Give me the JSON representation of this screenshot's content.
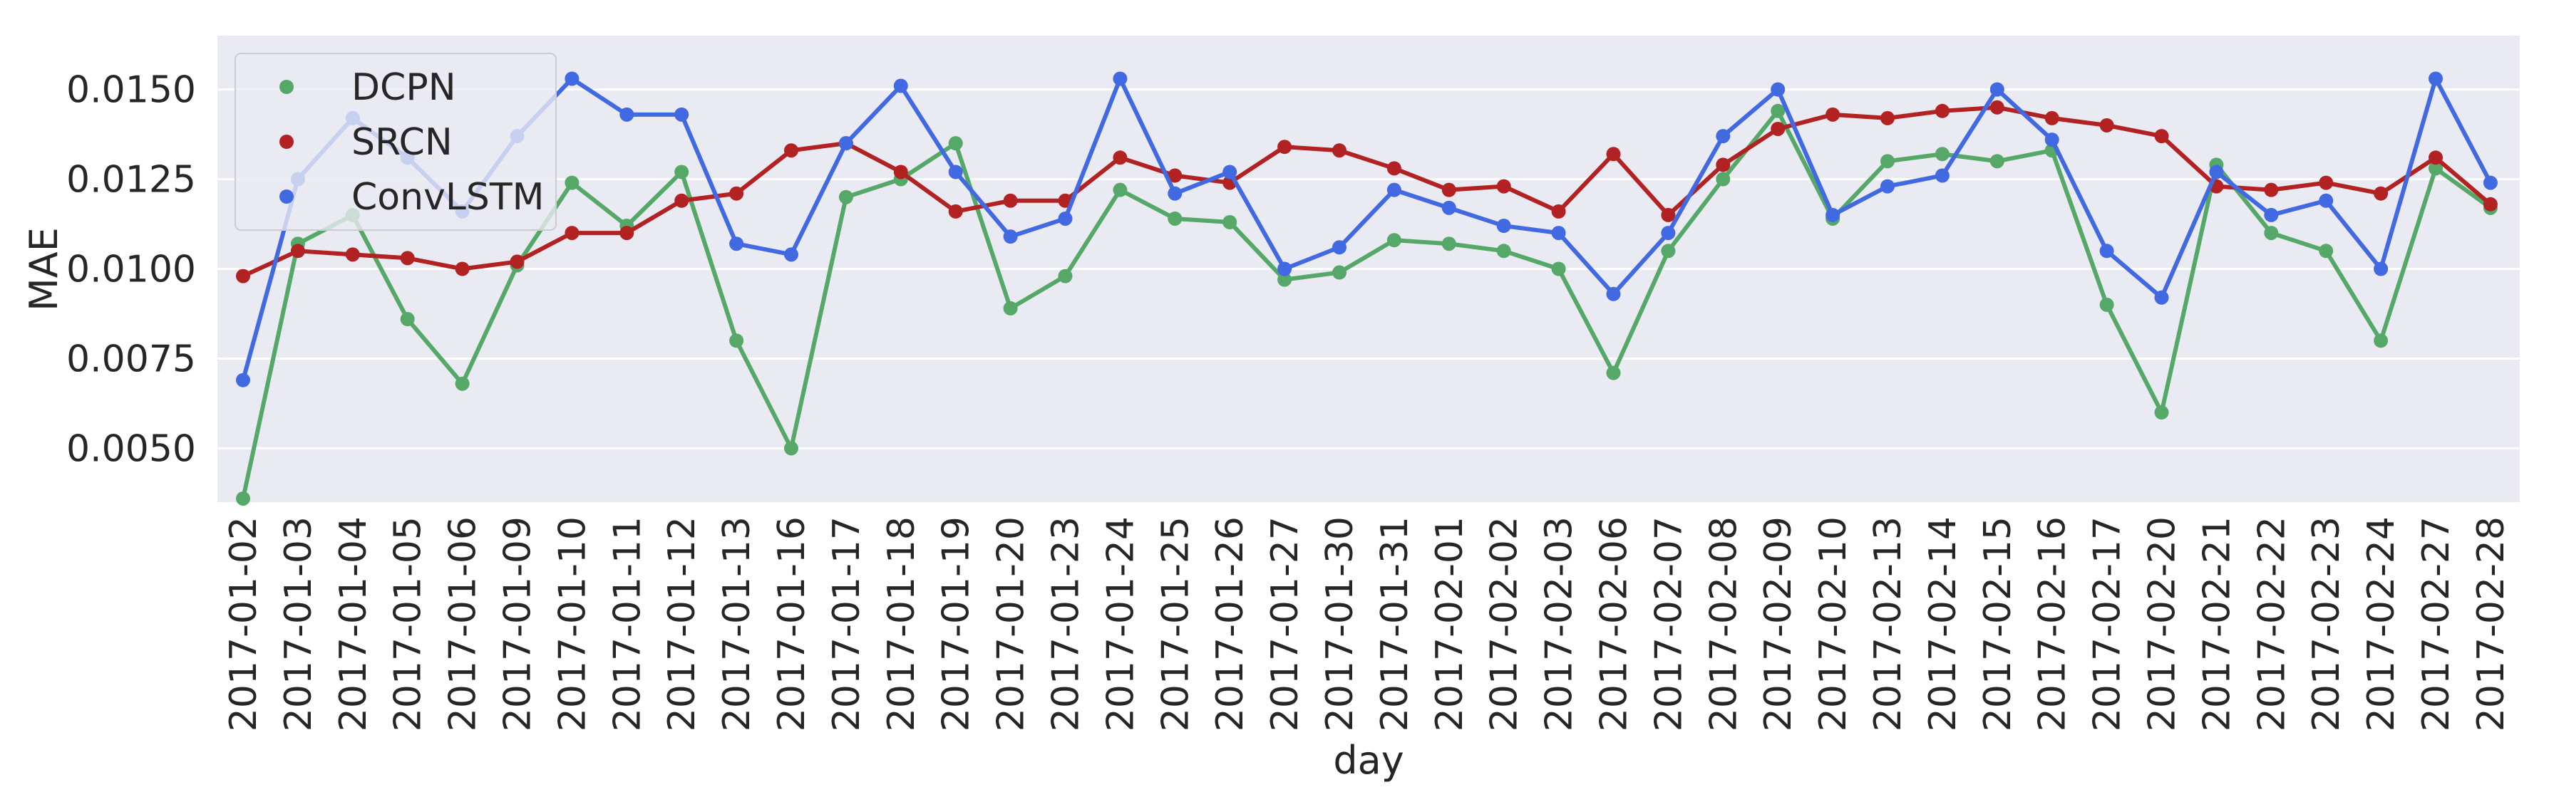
{
  "chart_data": {
    "type": "line",
    "xlabel": "day",
    "ylabel": "MAE",
    "ylim": [
      0.0035,
      0.0165
    ],
    "yticks": [
      "0.0050",
      "0.0075",
      "0.0100",
      "0.0125",
      "0.0150"
    ],
    "ytick_values": [
      0.005,
      0.0075,
      0.01,
      0.0125,
      0.015
    ],
    "grid": true,
    "legend_position": "top-left",
    "categories": [
      "2017-01-02",
      "2017-01-03",
      "2017-01-04",
      "2017-01-05",
      "2017-01-06",
      "2017-01-09",
      "2017-01-10",
      "2017-01-11",
      "2017-01-12",
      "2017-01-13",
      "2017-01-16",
      "2017-01-17",
      "2017-01-18",
      "2017-01-19",
      "2017-01-20",
      "2017-01-23",
      "2017-01-24",
      "2017-01-25",
      "2017-01-26",
      "2017-01-27",
      "2017-01-30",
      "2017-01-31",
      "2017-02-01",
      "2017-02-02",
      "2017-02-03",
      "2017-02-06",
      "2017-02-07",
      "2017-02-08",
      "2017-02-09",
      "2017-02-10",
      "2017-02-13",
      "2017-02-14",
      "2017-02-15",
      "2017-02-16",
      "2017-02-17",
      "2017-02-20",
      "2017-02-21",
      "2017-02-22",
      "2017-02-23",
      "2017-02-24",
      "2017-02-27",
      "2017-02-28"
    ],
    "series": [
      {
        "name": "DCPN",
        "color": "#55a868",
        "values": [
          0.0036,
          0.0107,
          0.0115,
          0.0086,
          0.0068,
          0.0101,
          0.0124,
          0.0112,
          0.0127,
          0.008,
          0.005,
          0.012,
          0.0125,
          0.0135,
          0.0089,
          0.0098,
          0.0122,
          0.0114,
          0.0113,
          0.0097,
          0.0099,
          0.0108,
          0.0107,
          0.0105,
          0.01,
          0.0071,
          0.0105,
          0.0125,
          0.0144,
          0.0114,
          0.013,
          0.0132,
          0.013,
          0.0133,
          0.009,
          0.006,
          0.0129,
          0.011,
          0.0105,
          0.008,
          0.0128,
          0.0117
        ]
      },
      {
        "name": "SRCN",
        "color": "#b22222",
        "values": [
          0.0098,
          0.0105,
          0.0104,
          0.0103,
          0.01,
          0.0102,
          0.011,
          0.011,
          0.0119,
          0.0121,
          0.0133,
          0.0135,
          0.0127,
          0.0116,
          0.0119,
          0.0119,
          0.0131,
          0.0126,
          0.0124,
          0.0134,
          0.0133,
          0.0128,
          0.0122,
          0.0123,
          0.0116,
          0.0132,
          0.0115,
          0.0129,
          0.0139,
          0.0143,
          0.0142,
          0.0144,
          0.0145,
          0.0142,
          0.014,
          0.0137,
          0.0123,
          0.0122,
          0.0124,
          0.0121,
          0.0131,
          0.0118
        ]
      },
      {
        "name": "ConvLSTM",
        "color": "#4169e1",
        "values": [
          0.0069,
          0.0125,
          0.0142,
          0.0131,
          0.0116,
          0.0137,
          0.0153,
          0.0143,
          0.0143,
          0.0107,
          0.0104,
          0.0135,
          0.0151,
          0.0127,
          0.0109,
          0.0114,
          0.0153,
          0.0121,
          0.0127,
          0.01,
          0.0106,
          0.0122,
          0.0117,
          0.0112,
          0.011,
          0.0093,
          0.011,
          0.0137,
          0.015,
          0.0115,
          0.0123,
          0.0126,
          0.015,
          0.0136,
          0.0105,
          0.0092,
          0.0127,
          0.0115,
          0.0119,
          0.01,
          0.0153,
          0.0124
        ]
      }
    ]
  }
}
